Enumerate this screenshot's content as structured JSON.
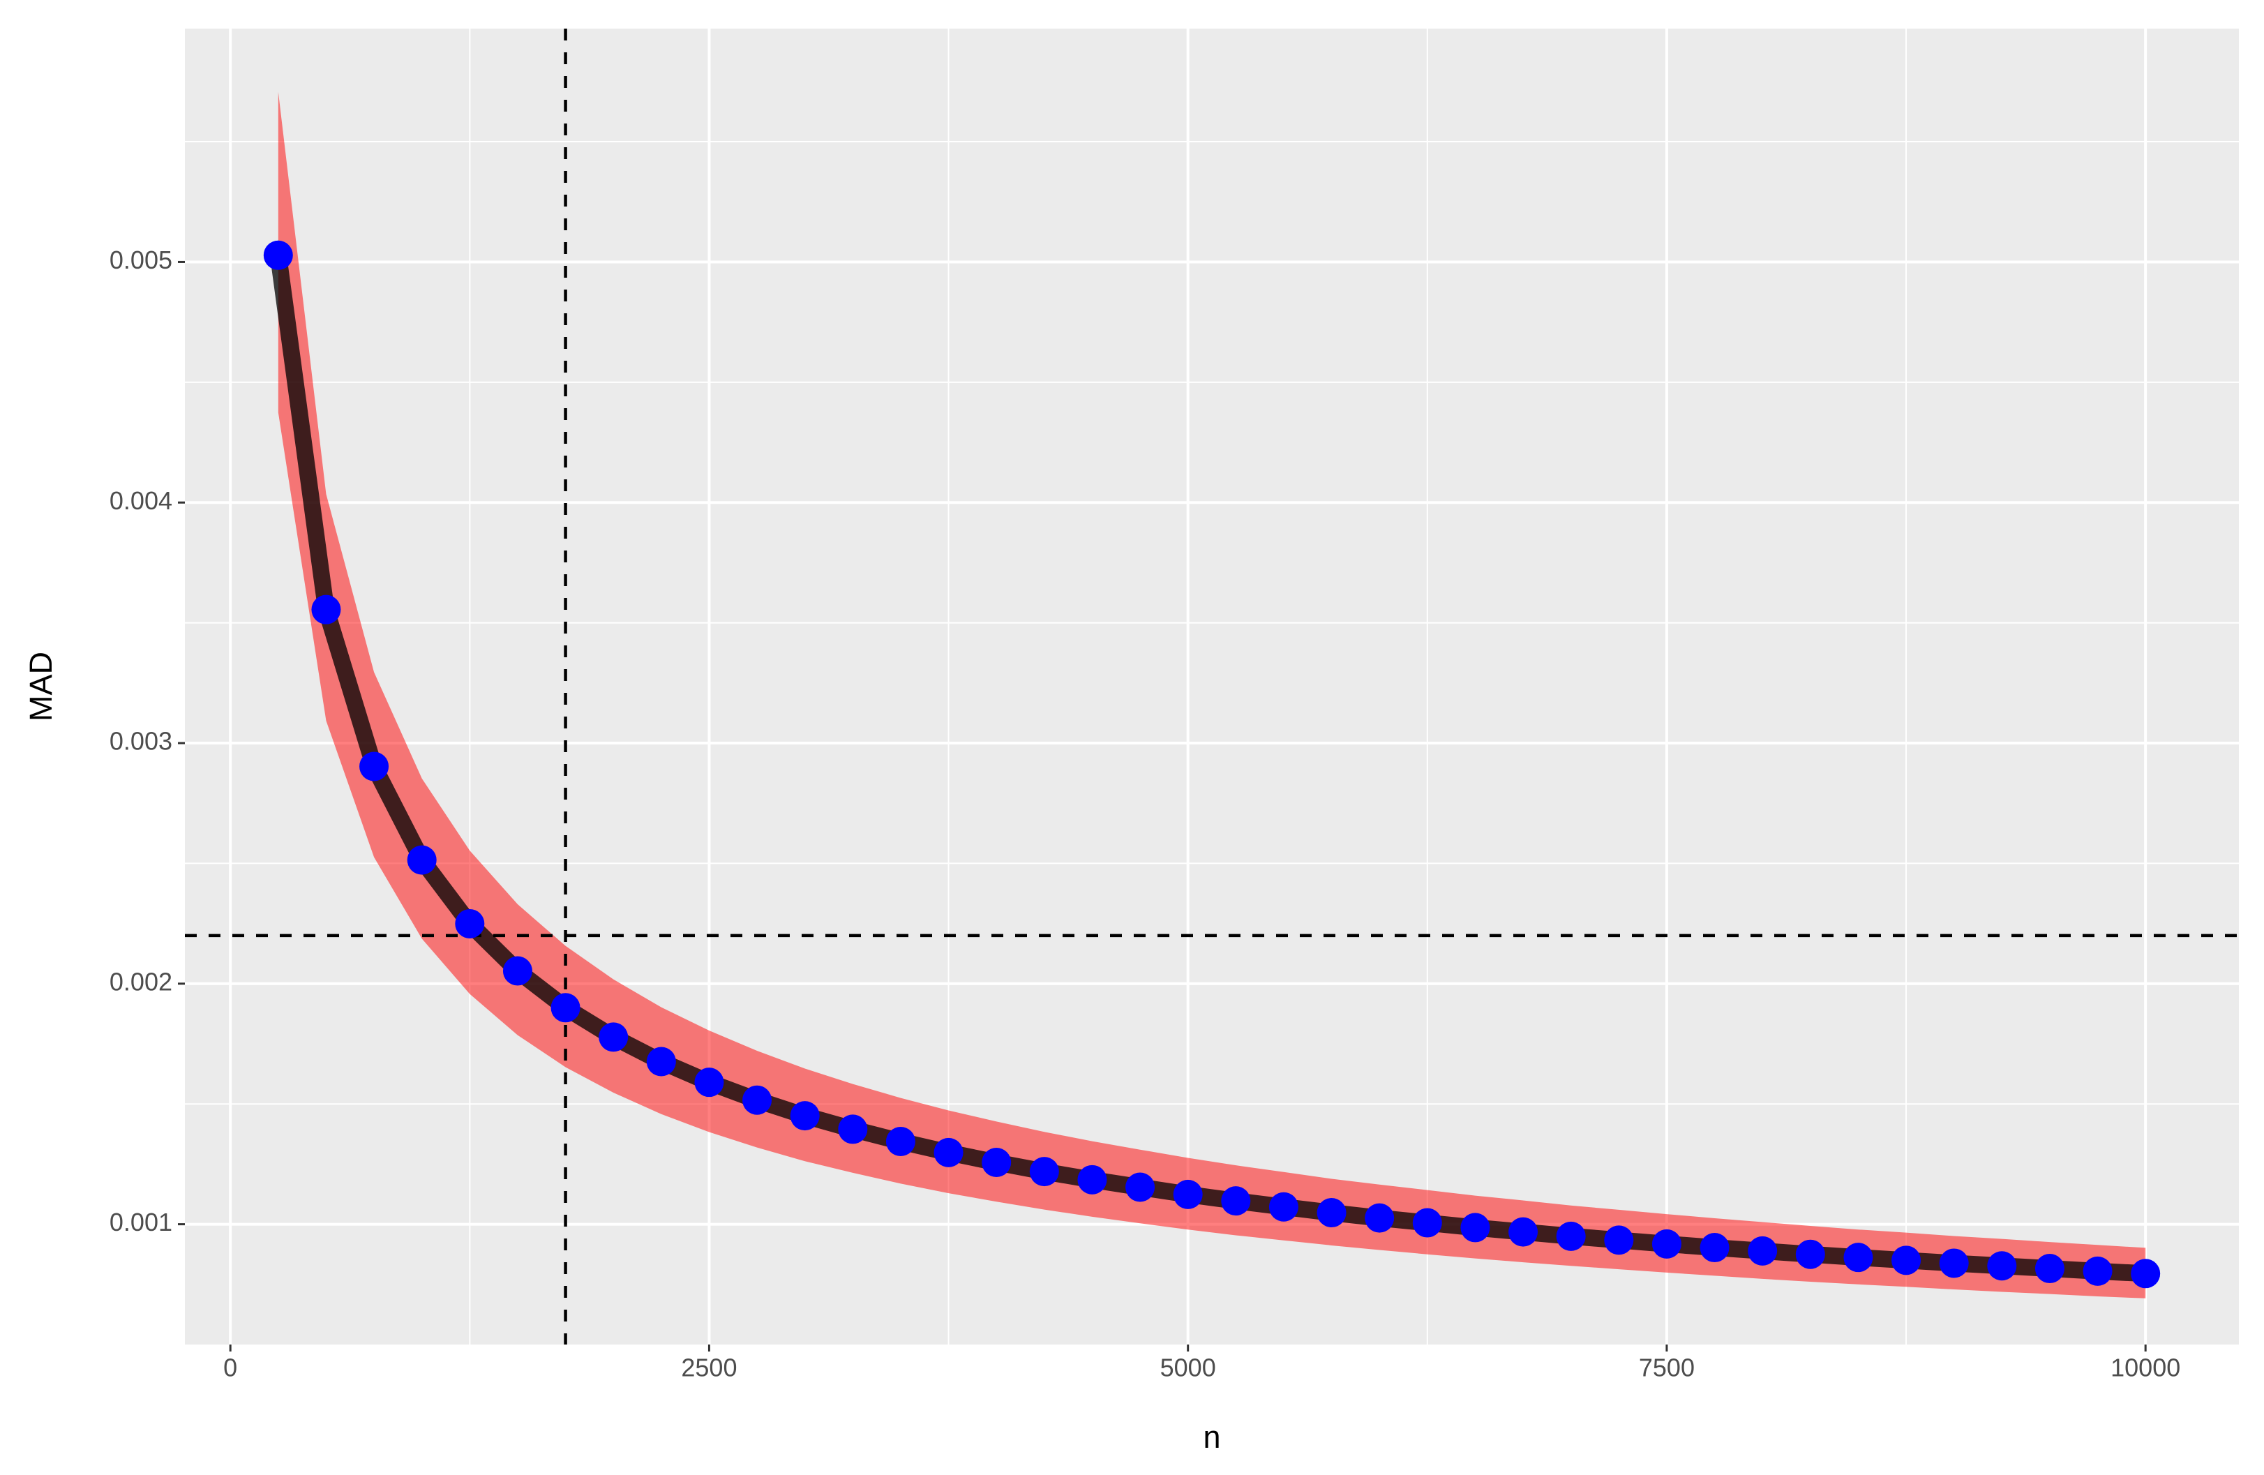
{
  "chart_data": {
    "type": "line",
    "xlabel": "n",
    "ylabel": "MAD",
    "x": [
      250,
      500,
      750,
      1000,
      1250,
      1500,
      1750,
      2000,
      2250,
      2500,
      2750,
      3000,
      3250,
      3500,
      3750,
      4000,
      4250,
      4500,
      4750,
      5000,
      5250,
      5500,
      5750,
      6000,
      6250,
      6500,
      6750,
      7000,
      7250,
      7500,
      7750,
      8000,
      8250,
      8500,
      8750,
      9000,
      9250,
      9500,
      9750,
      10000
    ],
    "values": [
      0.005028,
      0.003555,
      0.002903,
      0.002514,
      0.002249,
      0.002053,
      0.0019,
      0.001778,
      0.001676,
      0.00159,
      0.001516,
      0.001451,
      0.001395,
      0.001344,
      0.001298,
      0.001257,
      0.001219,
      0.001185,
      0.001154,
      0.001124,
      0.001097,
      0.001072,
      0.001048,
      0.001026,
      0.001006,
      0.000986,
      0.000968,
      0.00095,
      0.000934,
      0.000918,
      0.000903,
      0.000889,
      0.000875,
      0.000862,
      0.00085,
      0.000838,
      0.000827,
      0.000816,
      0.000805,
      0.000795
    ],
    "upper": [
      0.005707,
      0.004035,
      0.003295,
      0.002853,
      0.002553,
      0.00233,
      0.002157,
      0.002018,
      0.001902,
      0.001805,
      0.001721,
      0.001647,
      0.001583,
      0.001525,
      0.001473,
      0.001427,
      0.001384,
      0.001345,
      0.00131,
      0.001276,
      0.001245,
      0.001217,
      0.001189,
      0.001165,
      0.001142,
      0.001119,
      0.001099,
      0.001078,
      0.00106,
      0.001042,
      0.001025,
      0.001009,
      0.000993,
      0.000978,
      0.000965,
      0.000951,
      0.000939,
      0.000926,
      0.000914,
      0.000902
    ],
    "lower": [
      0.004374,
      0.003093,
      0.002526,
      0.002187,
      0.001957,
      0.001786,
      0.001653,
      0.001547,
      0.001458,
      0.001383,
      0.001319,
      0.001262,
      0.001214,
      0.001169,
      0.001129,
      0.001094,
      0.001061,
      0.001031,
      0.001004,
      0.000978,
      0.000954,
      0.000933,
      0.000912,
      0.000893,
      0.000875,
      0.000858,
      0.000842,
      0.000827,
      0.000813,
      0.000799,
      0.000786,
      0.000773,
      0.000761,
      0.00075,
      0.00074,
      0.000729,
      0.000719,
      0.00071,
      0.0007,
      0.000692
    ],
    "line_color": "#000000",
    "point_color": "#0000ff",
    "band_color": "#ff0000",
    "vline": 1750,
    "hline": 0.0022,
    "xlim": [
      -237.5,
      10487.5
    ],
    "ylim": [
      0.0005,
      0.00597
    ],
    "xticks": [
      0,
      2500,
      5000,
      7500,
      10000
    ],
    "yticks": [
      0.001,
      0.002,
      0.003,
      0.004,
      0.005
    ],
    "xticks_minor": [
      1250,
      3750,
      6250,
      8750
    ],
    "yticks_minor": [
      0.0015,
      0.0025,
      0.0035,
      0.0045,
      0.0055
    ],
    "grid": true
  }
}
